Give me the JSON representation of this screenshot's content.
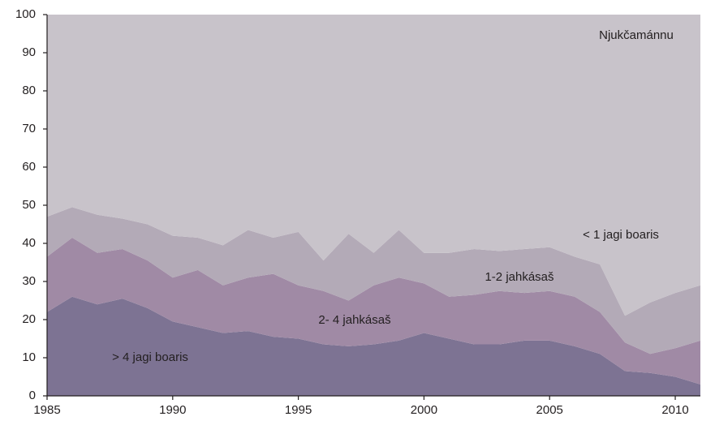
{
  "chart_data": {
    "type": "stacked_area",
    "annotation": "Njukčamánnu",
    "x": [
      1985,
      1986,
      1987,
      1988,
      1989,
      1990,
      1991,
      1992,
      1993,
      1994,
      1995,
      1996,
      1997,
      1998,
      1999,
      2000,
      2001,
      2002,
      2003,
      2004,
      2005,
      2006,
      2007,
      2008,
      2009,
      2010,
      2011
    ],
    "series": [
      {
        "name": "> 4 jagi boaris",
        "color": "#7d7393",
        "values": [
          22,
          26,
          24,
          25.5,
          23,
          19.5,
          18,
          16.5,
          17,
          15.5,
          15,
          13.5,
          13,
          13.5,
          14.5,
          16.5,
          15,
          13.5,
          13.5,
          14.5,
          14.5,
          13,
          11,
          6.5,
          6,
          5,
          3
        ]
      },
      {
        "name": "2- 4 jahkásaš",
        "color": "#a08aa5",
        "values": [
          14.5,
          15.5,
          13.5,
          13,
          12.5,
          11.5,
          15,
          12.5,
          14,
          16.5,
          14,
          14,
          12,
          15.5,
          16.5,
          13,
          11,
          13,
          14,
          12.5,
          13,
          13,
          11,
          7.5,
          5,
          7.5,
          11.5
        ]
      },
      {
        "name": "1-2 jahkásaš",
        "color": "#b3aab7",
        "values": [
          10.5,
          8,
          10,
          8,
          9.5,
          11,
          8.5,
          10.5,
          12.5,
          9.5,
          14,
          8,
          17.5,
          8.5,
          12.5,
          8,
          11.5,
          12,
          10.5,
          11.5,
          11.5,
          10.5,
          12.5,
          7,
          13.5,
          14.5,
          14.5
        ]
      },
      {
        "name": "< 1 jagi boaris",
        "color": "#c8c3ca",
        "values": [
          53,
          50.5,
          52.5,
          53.5,
          55,
          58,
          58.5,
          60.5,
          56.5,
          58.5,
          57,
          64.5,
          57.5,
          62.5,
          56.5,
          62.5,
          62.5,
          61.5,
          62,
          61.5,
          61,
          63.5,
          65.5,
          79,
          75.5,
          73,
          71
        ]
      }
    ],
    "xlim": [
      1985,
      2011
    ],
    "xticks": [
      1985,
      1990,
      1995,
      2000,
      2005,
      2010
    ],
    "ylim": [
      0,
      100
    ],
    "yticks": [
      0,
      10,
      20,
      30,
      40,
      50,
      60,
      70,
      80,
      90,
      100
    ]
  }
}
